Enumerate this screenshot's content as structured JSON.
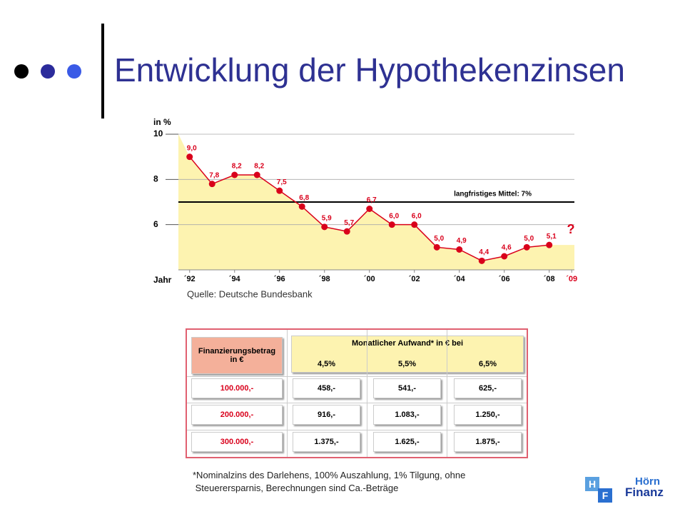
{
  "slide_title": "Entwicklung der Hypothekenzinsen",
  "chart_data": {
    "type": "line",
    "y_label": "in %",
    "x_label": "Jahr",
    "x": [
      1992,
      1993,
      1994,
      1995,
      1996,
      1997,
      1998,
      1999,
      2000,
      2001,
      2002,
      2003,
      2004,
      2005,
      2006,
      2007,
      2008
    ],
    "series": [
      {
        "color": "#d9001b",
        "fill": "#fdf3b0",
        "values": [
          9.0,
          7.8,
          8.2,
          8.2,
          7.5,
          6.8,
          5.9,
          5.7,
          6.7,
          6.0,
          6.0,
          5.0,
          4.9,
          4.4,
          4.6,
          5.0,
          5.1
        ],
        "value_labels": [
          "9,0",
          "7,8",
          "8,2",
          "8,2",
          "7,5",
          "6,8",
          "5,9",
          "5,7",
          "6,7",
          "6,0",
          "6,0",
          "5,0",
          "4,9",
          "4,4",
          "4,6",
          "5,0",
          "5,1"
        ]
      }
    ],
    "xlim": [
      1991.5,
      2009.12
    ],
    "xticks": [
      {
        "value": 1992,
        "label": "´92"
      },
      {
        "value": 1994,
        "label": "´94"
      },
      {
        "value": 1996,
        "label": "´96"
      },
      {
        "value": 1998,
        "label": "´98"
      },
      {
        "value": 2000,
        "label": "´00"
      },
      {
        "value": 2002,
        "label": "´02"
      },
      {
        "value": 2004,
        "label": "´04"
      },
      {
        "value": 2006,
        "label": "´06"
      },
      {
        "value": 2008,
        "label": "´08"
      },
      {
        "value": 2009,
        "label": "´09"
      }
    ],
    "ylim": [
      4,
      10
    ],
    "yticks": [
      6,
      8,
      10
    ],
    "grid": true,
    "mean": {
      "value": 7,
      "label": "langfristiges Mittel: 7%"
    },
    "annotation": {
      "text": "?",
      "color": "#d9001b"
    },
    "source": "Quelle: Deutsche Bundesbank"
  },
  "table": {
    "header_left": [
      "Finanzierungsbetrag",
      "in €"
    ],
    "header_right": "Monatlicher Aufwand* in € bei",
    "columns": [
      "4,5%",
      "5,5%",
      "6,5%"
    ],
    "rows": [
      [
        "100.000,-",
        "458,-",
        "541,-",
        "625,-"
      ],
      [
        "200.000,-",
        "916,-",
        "1.083,-",
        "1.250,-"
      ],
      [
        "300.000,-",
        "1.375,-",
        "1.625,-",
        "1.875,-"
      ]
    ]
  },
  "footnote": [
    "*Nominalzins des Darlehens, 100% Auszahlung, 1% Tilgung, ohne",
    " Steuerersparnis, Berechnungen sind Ca.-Beträge"
  ],
  "logo": {
    "letters": [
      "H",
      "F"
    ],
    "name": [
      "Hörn",
      "Finanz"
    ]
  }
}
